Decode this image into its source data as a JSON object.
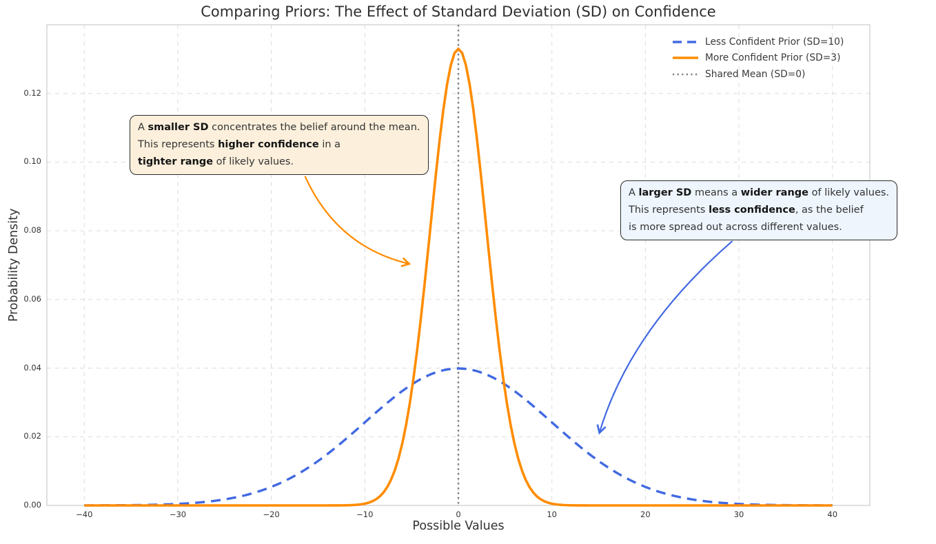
{
  "chart_data": {
    "type": "line",
    "title": "Comparing Priors: The Effect of Standard Deviation (SD) on Confidence",
    "xlabel": "Possible Values",
    "ylabel": "Probability Density",
    "xlim": [
      -44,
      44
    ],
    "ylim": [
      0,
      0.14
    ],
    "grid": "both-axes, dashed, light-gray",
    "x_ticks": {
      "values": [
        -40,
        -30,
        -20,
        -10,
        0,
        10,
        20,
        30,
        40
      ],
      "labels": [
        "−40",
        "−30",
        "−20",
        "−10",
        "0",
        "10",
        "20",
        "30",
        "40"
      ]
    },
    "y_ticks": {
      "values": [
        0.0,
        0.02,
        0.04,
        0.06,
        0.08,
        0.1,
        0.12
      ],
      "labels": [
        "0.00",
        "0.02",
        "0.04",
        "0.06",
        "0.08",
        "0.10",
        "0.12"
      ]
    },
    "series": [
      {
        "name": "Less Confident Prior (SD=10)",
        "distribution": "normal",
        "mean": 0,
        "sd": 10,
        "peak_density": 0.0399,
        "x_range": [
          -40,
          40
        ],
        "color": "#4169E1",
        "line_style": "dashed",
        "line_width": 3.4
      },
      {
        "name": "More Confident Prior (SD=3)",
        "distribution": "normal",
        "mean": 0,
        "sd": 3,
        "peak_density": 0.133,
        "x_range": [
          -40,
          40
        ],
        "color": "#FF8C00",
        "line_style": "solid",
        "line_width": 3.6
      }
    ],
    "mean_line": {
      "name": "Shared Mean (SD=0)",
      "x": 0,
      "color": "#7d7d7d",
      "line_style": "dotted",
      "line_width": 2.4
    },
    "legend": {
      "position": "upper right",
      "entries": [
        {
          "label": "Less Confident Prior (SD=10)",
          "color": "#4169E1",
          "style": "dashed"
        },
        {
          "label": "More Confident Prior (SD=3)",
          "color": "#FF8C00",
          "style": "solid"
        },
        {
          "label": "Shared Mean (SD=0)",
          "color": "#7d7d7d",
          "style": "dotted"
        }
      ]
    },
    "annotations": [
      {
        "id": "smaller-sd",
        "box_color": "#fcf0dc",
        "border_color": "#2b2b2b",
        "arrow_color": "#FF8C00",
        "lines": [
          [
            {
              "text": "A "
            },
            {
              "text": "smaller SD",
              "bold": true
            },
            {
              "text": " concentrates the belief around the mean."
            }
          ],
          [
            {
              "text": "This represents "
            },
            {
              "text": "higher confidence",
              "bold": true
            },
            {
              "text": " in a"
            }
          ],
          [
            {
              "text": "tighter range",
              "bold": true
            },
            {
              "text": " of likely values."
            }
          ]
        ],
        "arrow": {
          "from": {
            "x": -16.4,
            "y": 0.0959
          },
          "ctrl": {
            "x": -13.0,
            "y": 0.0754
          },
          "to": {
            "x": -5.3,
            "y": 0.0704
          }
        }
      },
      {
        "id": "larger-sd",
        "box_color": "#eef5fd",
        "border_color": "#2b2b2b",
        "arrow_color": "#4169E1",
        "lines": [
          [
            {
              "text": "A "
            },
            {
              "text": "larger SD",
              "bold": true
            },
            {
              "text": " means a "
            },
            {
              "text": "wider range",
              "bold": true
            },
            {
              "text": " of likely values."
            }
          ],
          [
            {
              "text": "This represents "
            },
            {
              "text": "less confidence",
              "bold": true
            },
            {
              "text": ", as the belief"
            }
          ],
          [
            {
              "text": "is more spread out across different values."
            }
          ]
        ],
        "arrow": {
          "from": {
            "x": 29.3,
            "y": 0.077
          },
          "ctrl": {
            "x": 18.4,
            "y": 0.0513
          },
          "to": {
            "x": 15.1,
            "y": 0.0213
          }
        }
      }
    ]
  }
}
